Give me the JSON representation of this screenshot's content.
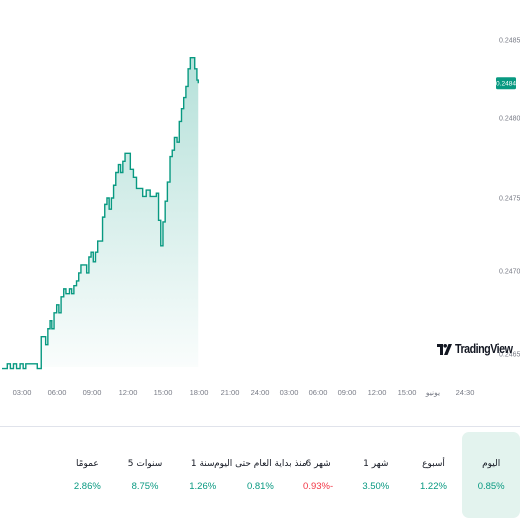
{
  "chart_data": {
    "type": "area",
    "y_ticks": [
      "0.2465",
      "0.2470",
      "0.2475",
      "0.2480",
      "0.2485"
    ],
    "ylim": [
      0.24646,
      0.24858
    ],
    "x_ticks": [
      "03:00",
      "06:00",
      "09:00",
      "12:00",
      "15:00",
      "18:00",
      "21:00",
      "24:00",
      "03:00",
      "06:00",
      "09:00",
      "12:00",
      "15:00",
      "يونيو",
      "24:30"
    ],
    "time_range": [
      0,
      100
    ],
    "values": [
      [
        0.0,
        0.24645
      ],
      [
        1.2,
        0.24648
      ],
      [
        1.9,
        0.24645
      ],
      [
        2.6,
        0.24648
      ],
      [
        3.3,
        0.24645
      ],
      [
        4.1,
        0.24648
      ],
      [
        4.8,
        0.24645
      ],
      [
        5.4,
        0.24648
      ],
      [
        7.5,
        0.24648
      ],
      [
        8.0,
        0.24645
      ],
      [
        8.3,
        0.24645
      ],
      [
        8.9,
        0.24665
      ],
      [
        9.5,
        0.24665
      ],
      [
        9.9,
        0.2466
      ],
      [
        10.4,
        0.2467
      ],
      [
        10.9,
        0.24675
      ],
      [
        11.3,
        0.2467
      ],
      [
        11.8,
        0.2468
      ],
      [
        12.4,
        0.24685
      ],
      [
        12.9,
        0.2468
      ],
      [
        13.4,
        0.2469
      ],
      [
        14.0,
        0.24695
      ],
      [
        14.5,
        0.24692
      ],
      [
        15.3,
        0.24695
      ],
      [
        15.8,
        0.24692
      ],
      [
        16.3,
        0.24697
      ],
      [
        16.9,
        0.247
      ],
      [
        17.4,
        0.24705
      ],
      [
        17.9,
        0.2471
      ],
      [
        18.6,
        0.2471
      ],
      [
        19.2,
        0.24705
      ],
      [
        19.7,
        0.24715
      ],
      [
        20.2,
        0.24718
      ],
      [
        20.7,
        0.24712
      ],
      [
        21.2,
        0.24718
      ],
      [
        21.7,
        0.24725
      ],
      [
        22.3,
        0.24725
      ],
      [
        22.8,
        0.2474
      ],
      [
        23.3,
        0.24748
      ],
      [
        23.8,
        0.24752
      ],
      [
        24.3,
        0.24745
      ],
      [
        24.8,
        0.24752
      ],
      [
        25.3,
        0.2476
      ],
      [
        25.8,
        0.24768
      ],
      [
        26.4,
        0.24773
      ],
      [
        26.9,
        0.24768
      ],
      [
        27.4,
        0.24775
      ],
      [
        27.9,
        0.2478
      ],
      [
        28.6,
        0.2478
      ],
      [
        29.1,
        0.2477
      ],
      [
        29.8,
        0.24765
      ],
      [
        30.5,
        0.24758
      ],
      [
        31.3,
        0.24758
      ],
      [
        31.9,
        0.24753
      ],
      [
        32.7,
        0.24757
      ],
      [
        33.6,
        0.24753
      ],
      [
        34.4,
        0.24753
      ],
      [
        35.0,
        0.24755
      ],
      [
        35.5,
        0.24738
      ],
      [
        36.0,
        0.24722
      ],
      [
        36.5,
        0.24737
      ],
      [
        37.0,
        0.2475
      ],
      [
        37.5,
        0.24762
      ],
      [
        38.1,
        0.24778
      ],
      [
        38.6,
        0.24782
      ],
      [
        39.1,
        0.2479
      ],
      [
        39.7,
        0.24787
      ],
      [
        40.2,
        0.248
      ],
      [
        40.7,
        0.24808
      ],
      [
        41.2,
        0.24815
      ],
      [
        41.7,
        0.24822
      ],
      [
        42.2,
        0.24833
      ],
      [
        42.7,
        0.2484
      ],
      [
        43.2,
        0.2484
      ],
      [
        43.7,
        0.24833
      ],
      [
        44.2,
        0.24826
      ],
      [
        44.5,
        0.24824
      ]
    ],
    "last_price": "0.2484",
    "color": "#089981",
    "grid": false,
    "legend": "none"
  },
  "logo": {
    "text": "TradingView",
    "icon": "tradingview-logo-icon"
  },
  "periods": [
    {
      "label": "اليوم",
      "value": "0.85%",
      "trend": "up",
      "active": true
    },
    {
      "label": "أسبوع",
      "value": "1.22%",
      "trend": "up",
      "active": false
    },
    {
      "label": "1 شهر",
      "value": "3.50%",
      "trend": "up",
      "active": false
    },
    {
      "label": "6 شهر",
      "value": "0.93%-",
      "trend": "down",
      "active": false
    },
    {
      "label": "منذ بداية العام حتى اليوم",
      "value": "0.81%",
      "trend": "up",
      "active": false
    },
    {
      "label": "1 سنة",
      "value": "1.26%",
      "trend": "up",
      "active": false
    },
    {
      "label": "5 سنوات",
      "value": "8.75%",
      "trend": "up",
      "active": false
    },
    {
      "label": "عمومًا",
      "value": "2.86%",
      "trend": "up",
      "active": false
    }
  ]
}
